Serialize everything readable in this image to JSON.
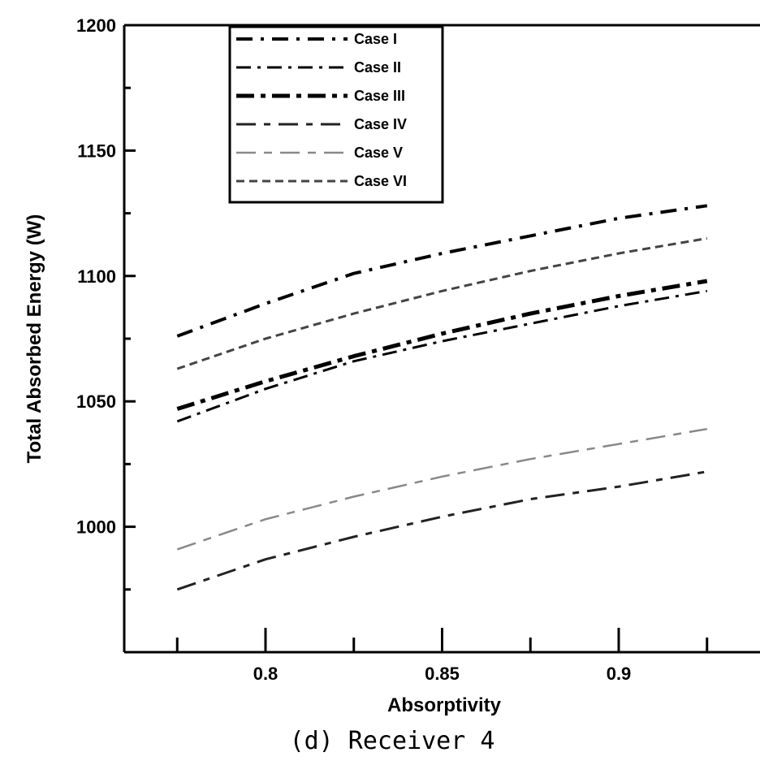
{
  "chart_data": {
    "type": "line",
    "title": "",
    "caption": "(d) Receiver 4",
    "xlabel": "Absorptivity",
    "ylabel": "Total Absorbed Energy (W)",
    "xlim": [
      0.76,
      0.94
    ],
    "ylim": [
      950,
      1200
    ],
    "x_ticks": [
      0.8,
      0.85,
      0.9
    ],
    "y_ticks": [
      1000,
      1050,
      1100,
      1150,
      1200
    ],
    "grid": false,
    "legend_position": "top-left",
    "x": [
      0.775,
      0.8,
      0.825,
      0.85,
      0.875,
      0.9,
      0.925
    ],
    "series": [
      {
        "name": "Case I",
        "values": [
          1076,
          1089,
          1101,
          1109,
          1116,
          1123,
          1128
        ],
        "dash": "20,10,4,10",
        "width": 4,
        "color": "#000000"
      },
      {
        "name": "Case II",
        "values": [
          1042,
          1055,
          1066,
          1074,
          1081,
          1088,
          1094
        ],
        "dash": "18,8,4,8",
        "width": 3,
        "color": "#000000"
      },
      {
        "name": "Case III",
        "values": [
          1047,
          1058,
          1068,
          1077,
          1085,
          1092,
          1098
        ],
        "dash": "22,8,6,8",
        "width": 5,
        "color": "#000000"
      },
      {
        "name": "Case IV",
        "values": [
          975,
          987,
          996,
          1004,
          1011,
          1016,
          1022
        ],
        "dash": "24,10,8,10",
        "width": 3,
        "color": "#222222"
      },
      {
        "name": "Case V",
        "values": [
          991,
          1003,
          1012,
          1020,
          1027,
          1033,
          1039
        ],
        "dash": "24,10,10,10",
        "width": 2.5,
        "color": "#888888"
      },
      {
        "name": "Case VI",
        "values": [
          1063,
          1075,
          1085,
          1094,
          1102,
          1109,
          1115
        ],
        "dash": "10,6",
        "width": 3,
        "color": "#444444"
      }
    ]
  }
}
